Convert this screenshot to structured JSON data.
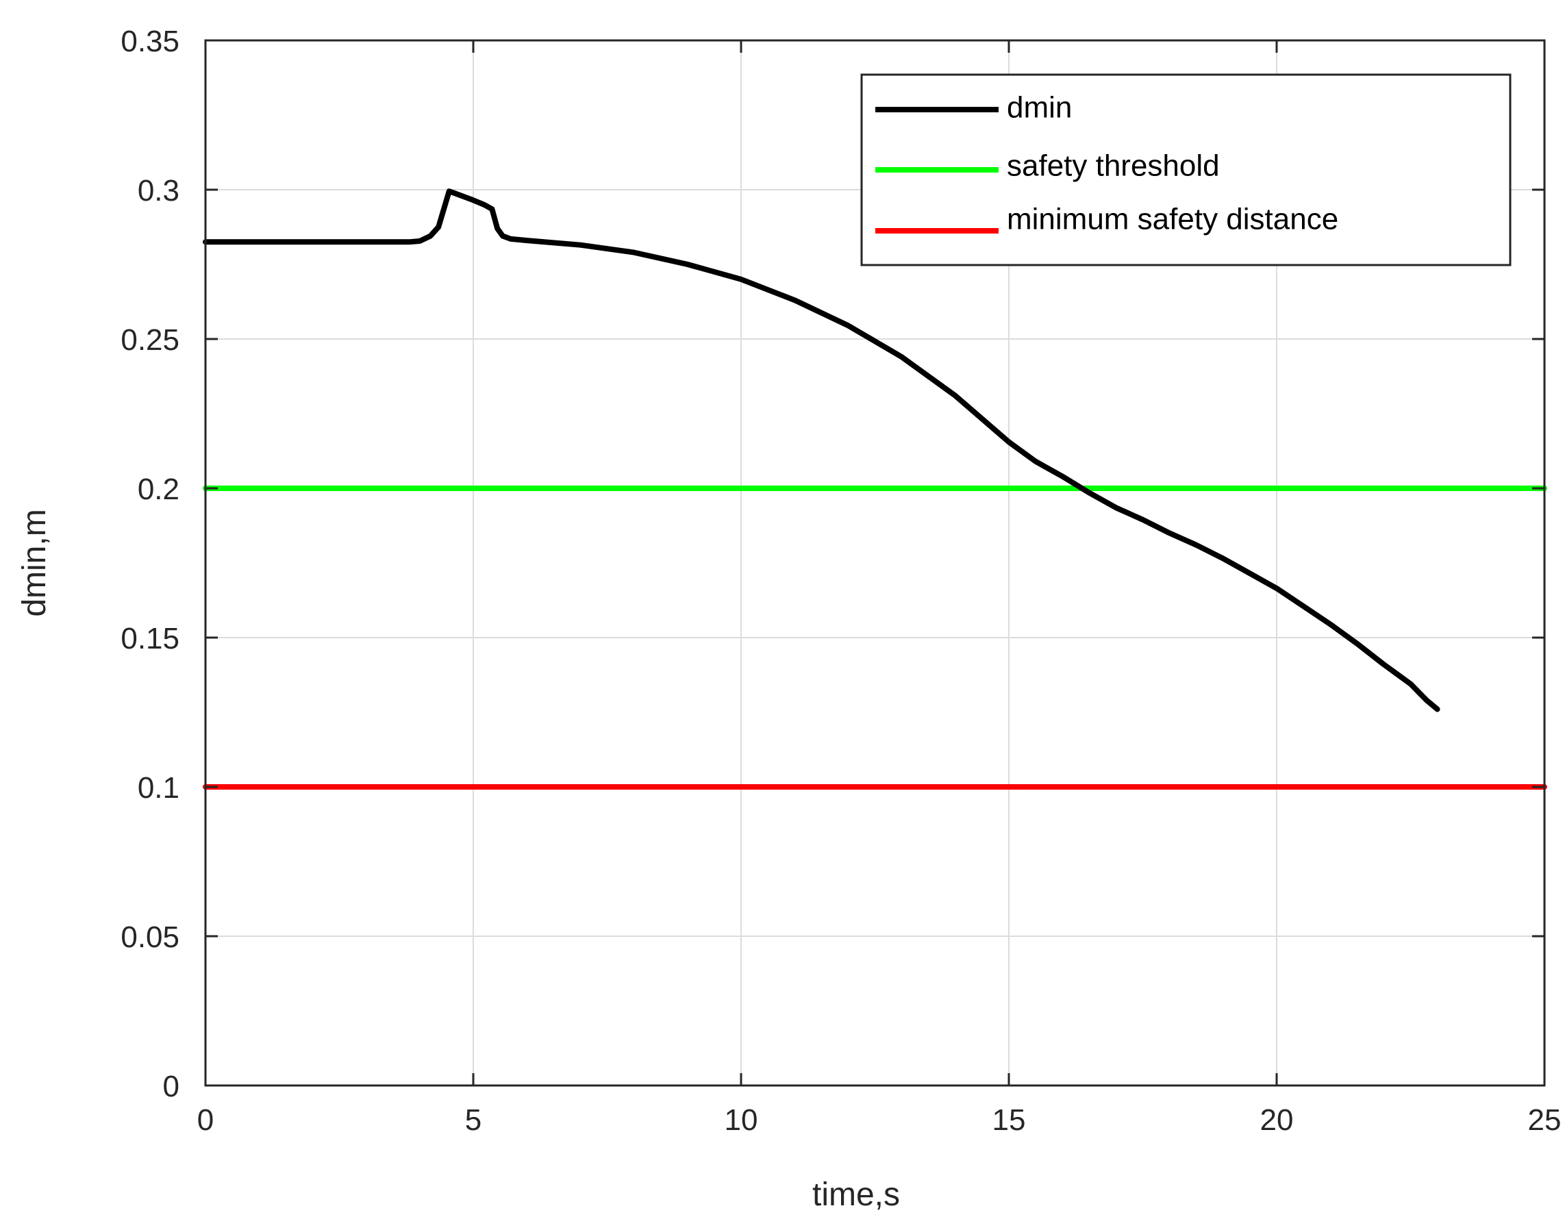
{
  "chart_data": {
    "type": "line",
    "xlabel": "time,s",
    "ylabel": "dmin,m",
    "xlim": [
      0,
      25
    ],
    "ylim": [
      0,
      0.35
    ],
    "xticks": [
      0,
      5,
      10,
      15,
      20,
      25
    ],
    "xtick_labels": [
      "0",
      "5",
      "10",
      "15",
      "20",
      "25"
    ],
    "yticks": [
      0,
      0.05,
      0.1,
      0.15,
      0.2,
      0.25,
      0.3,
      0.35
    ],
    "ytick_labels": [
      "0",
      "0.05",
      "0.1",
      "0.15",
      "0.2",
      "0.25",
      "0.3",
      "0.35"
    ],
    "grid": true,
    "legend_position": "top-right",
    "series": [
      {
        "name": "dmin",
        "color": "#000000",
        "x": [
          0,
          1,
          2,
          3,
          3.8,
          4.0,
          4.2,
          4.35,
          4.45,
          4.55,
          4.7,
          5.0,
          5.2,
          5.35,
          5.45,
          5.55,
          5.7,
          6.0,
          7,
          8,
          9,
          10,
          11,
          12,
          13,
          14,
          15,
          15.5,
          16,
          16.5,
          17,
          17.5,
          18,
          18.5,
          19,
          19.5,
          20,
          20.5,
          21,
          21.5,
          22,
          22.5,
          22.8,
          23.0
        ],
        "y": [
          0.2825,
          0.2825,
          0.2825,
          0.2825,
          0.2825,
          0.2828,
          0.2845,
          0.2875,
          0.2935,
          0.2995,
          0.2985,
          0.2965,
          0.295,
          0.2935,
          0.287,
          0.2845,
          0.2835,
          0.283,
          0.2815,
          0.279,
          0.275,
          0.27,
          0.263,
          0.2545,
          0.244,
          0.231,
          0.2155,
          0.209,
          0.204,
          0.1985,
          0.1935,
          0.1895,
          0.185,
          0.181,
          0.1765,
          0.1715,
          0.1665,
          0.1605,
          0.1545,
          0.148,
          0.141,
          0.1345,
          0.129,
          0.126
        ]
      },
      {
        "name": "safety threshold",
        "color": "#00ff00",
        "x": [
          0,
          25
        ],
        "y": [
          0.2,
          0.2
        ]
      },
      {
        "name": "minimum safety distance",
        "color": "#ff0000",
        "x": [
          0,
          25
        ],
        "y": [
          0.1,
          0.1
        ]
      }
    ]
  }
}
